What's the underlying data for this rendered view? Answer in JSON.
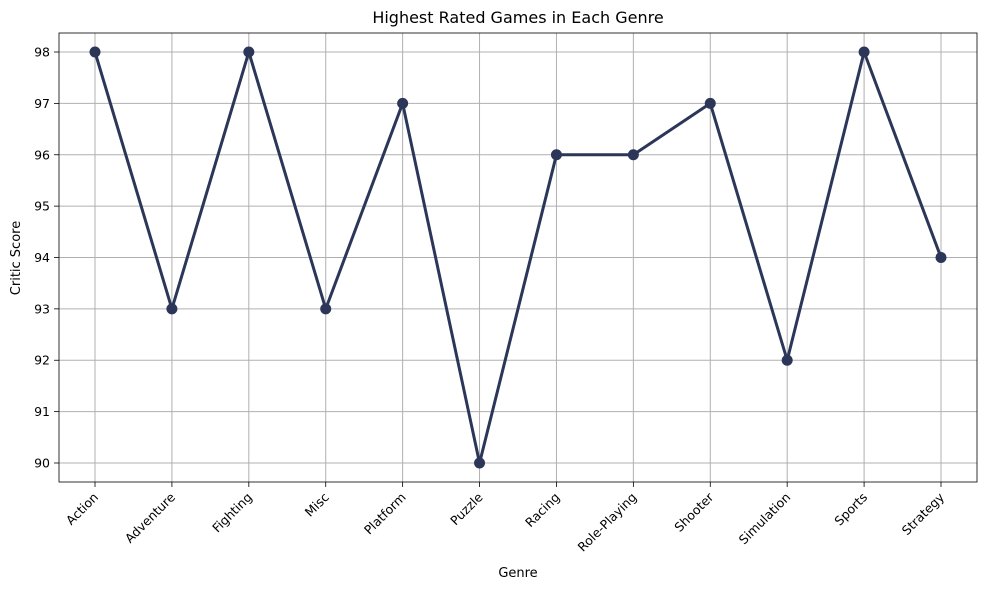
{
  "chart_data": {
    "type": "line",
    "title": "Highest Rated Games in Each Genre",
    "xlabel": "Genre",
    "ylabel": "Critic Score",
    "categories": [
      "Action",
      "Adventure",
      "Fighting",
      "Misc",
      "Platform",
      "Puzzle",
      "Racing",
      "Role-Playing",
      "Shooter",
      "Simulation",
      "Sports",
      "Strategy"
    ],
    "series": [
      {
        "values": [
          98,
          93,
          98,
          93,
          97,
          90,
          96,
          96,
          97,
          92,
          98,
          94
        ]
      }
    ],
    "ylim": [
      89.63,
      98.37
    ],
    "yticks": [
      90,
      91,
      92,
      93,
      94,
      95,
      96,
      97,
      98
    ],
    "grid": true,
    "line_color": "#2b3659",
    "grid_color": "#b0b0b0"
  }
}
